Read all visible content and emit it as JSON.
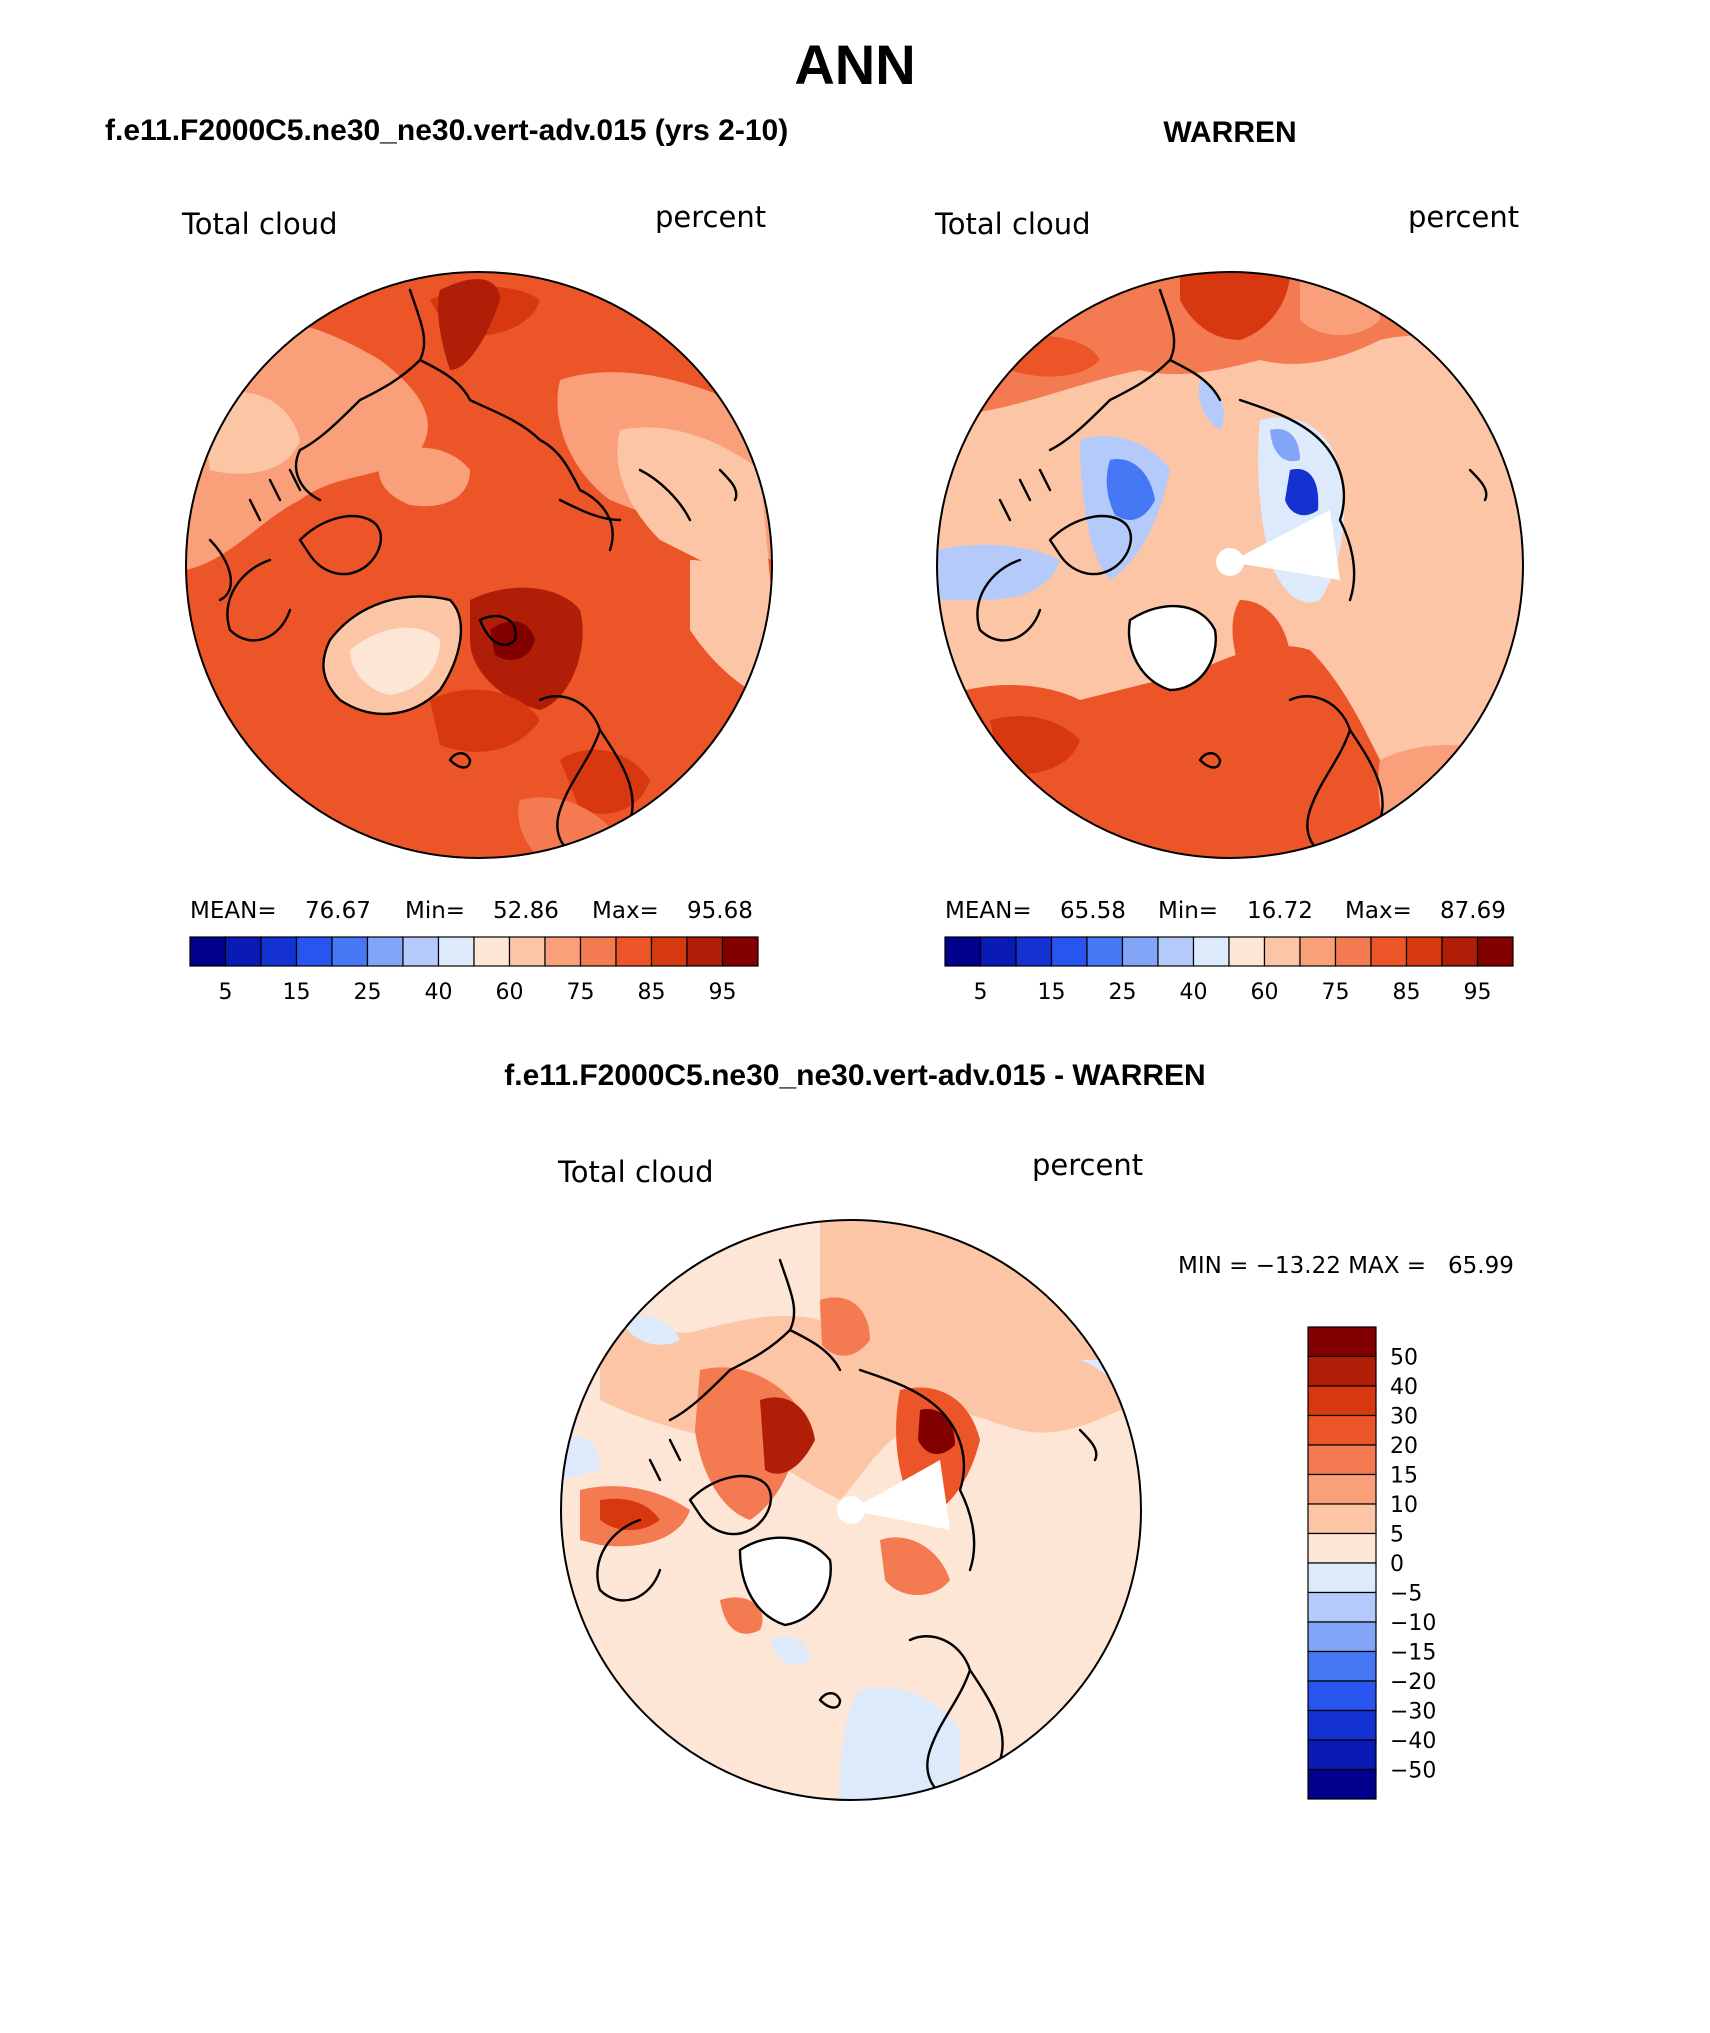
{
  "main_title": "ANN",
  "panels": [
    {
      "title": "f.e11.F2000C5.ne30_ne30.vert-adv.015 (yrs 2-10)",
      "variable_label": "Total cloud",
      "units_label": "percent",
      "stats": {
        "mean_label": "MEAN=",
        "mean": "76.67",
        "min_label": "Min=",
        "min": "52.86",
        "max_label": "Max=",
        "max": "95.68"
      }
    },
    {
      "title": "WARREN",
      "variable_label": "Total cloud",
      "units_label": "percent",
      "stats": {
        "mean_label": "MEAN=",
        "mean": "65.58",
        "min_label": "Min=",
        "min": "16.72",
        "max_label": "Max=",
        "max": "87.69"
      }
    },
    {
      "title": "f.e11.F2000C5.ne30_ne30.vert-adv.015 - WARREN",
      "variable_label": "Total cloud",
      "units_label": "percent",
      "minmax_text": "MIN = −13.22 MAX =   65.99"
    }
  ],
  "abs_colorbar": {
    "colors": [
      "#00008c",
      "#0a1ab4",
      "#1432d2",
      "#2854f0",
      "#4678f5",
      "#82a5f7",
      "#b4cafa",
      "#dceafc",
      "#fde6d6",
      "#fcc6a6",
      "#f9a07a",
      "#f47a52",
      "#ec5528",
      "#d83810",
      "#b01e08",
      "#820000"
    ],
    "tick_labels": [
      "5",
      "15",
      "25",
      "40",
      "60",
      "75",
      "85",
      "95"
    ]
  },
  "diff_colorbar": {
    "colors": [
      "#820000",
      "#b01e08",
      "#d83810",
      "#ec5528",
      "#f47a52",
      "#f9a07a",
      "#fcc6a6",
      "#fde6d6",
      "#dceafc",
      "#b4cafa",
      "#82a5f7",
      "#4678f5",
      "#2854f0",
      "#1432d2",
      "#0a1ab4",
      "#00008c"
    ],
    "tick_labels": [
      "50",
      "40",
      "30",
      "20",
      "15",
      "10",
      "5",
      "0",
      "−5",
      "−10",
      "−15",
      "−20",
      "−30",
      "−40",
      "−50"
    ]
  }
}
